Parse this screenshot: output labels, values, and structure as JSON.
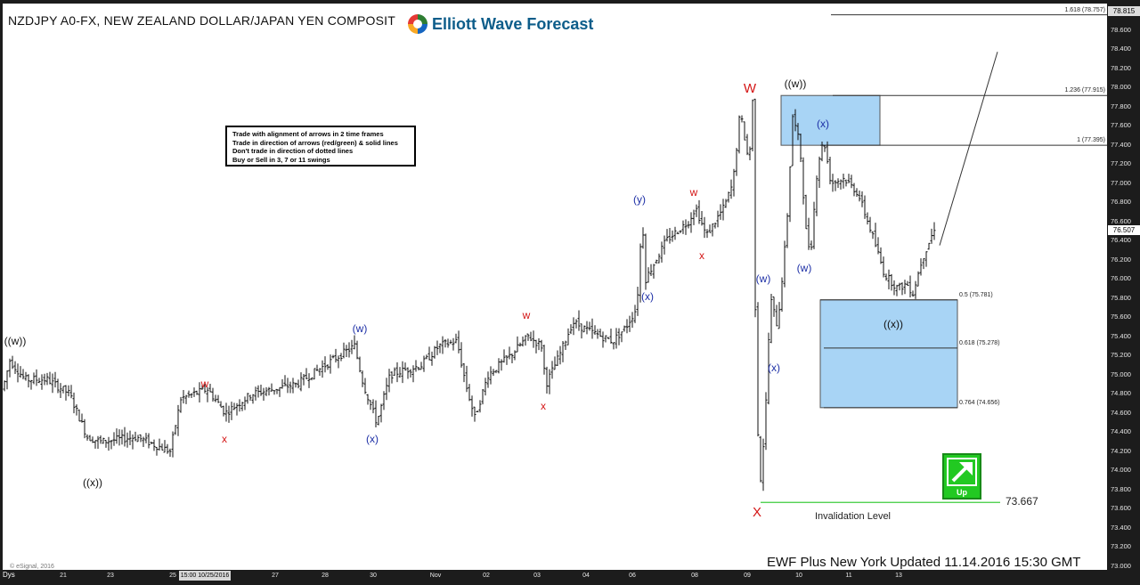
{
  "title": "NZDJPY A0-FX, NEW ZEALAND DOLLAR/JAPAN YEN COMPOSIT",
  "logo_text": "Elliott Wave Forecast",
  "rules": [
    "Trade with alignment of arrows in 2 time frames",
    "Trade in direction of arrows (red/green) & solid lines",
    "Don't trade in direction of dotted lines",
    "Buy or Sell in 3, 7 or 11 swings"
  ],
  "footer": "EWF Plus New York Updated 11.14.2016 15:30 GMT",
  "esignal": "© eSignal, 2016",
  "dys_label": "Dys",
  "cursor_date": "15:00 10/25/2016",
  "last_price": "76.507",
  "top_price": "78.815",
  "up_label": "Up",
  "invalidation": {
    "value": "73.667",
    "label": "Invalidation Level"
  },
  "colors": {
    "blue_box": "#a8d4f5",
    "green_line": "#3ecb3e",
    "wave_red": "#d41515",
    "wave_blue": "#1d2fa6",
    "arrow_green": "#22c922"
  },
  "chart_data": {
    "type": "ohlc",
    "y_axis": {
      "min": 73.0,
      "max": 78.8,
      "ticks": [
        "73.000",
        "73.200",
        "73.400",
        "73.600",
        "73.800",
        "74.000",
        "74.200",
        "74.400",
        "74.600",
        "74.800",
        "75.000",
        "75.200",
        "75.400",
        "75.600",
        "75.800",
        "76.000",
        "76.200",
        "76.400",
        "76.600",
        "76.800",
        "77.000",
        "77.200",
        "77.400",
        "77.600",
        "77.800",
        "78.000",
        "78.200",
        "78.400",
        "78.600"
      ]
    },
    "x_ticks": [
      "21",
      "23",
      "25",
      "27",
      "28",
      "30",
      "Nov",
      "02",
      "03",
      "04",
      "06",
      "08",
      "09",
      "10",
      "11",
      "13"
    ],
    "series_anchors": [
      [
        0,
        74.85
      ],
      [
        8,
        75.15
      ],
      [
        25,
        74.95
      ],
      [
        50,
        74.95
      ],
      [
        75,
        74.8
      ],
      [
        95,
        74.35
      ],
      [
        110,
        74.3
      ],
      [
        150,
        74.35
      ],
      [
        188,
        74.2
      ],
      [
        200,
        74.75
      ],
      [
        230,
        74.85
      ],
      [
        250,
        74.6
      ],
      [
        280,
        74.8
      ],
      [
        330,
        74.9
      ],
      [
        370,
        75.15
      ],
      [
        395,
        75.3
      ],
      [
        405,
        74.9
      ],
      [
        420,
        74.5
      ],
      [
        435,
        75.0
      ],
      [
        470,
        75.1
      ],
      [
        490,
        75.3
      ],
      [
        510,
        75.35
      ],
      [
        520,
        74.9
      ],
      [
        530,
        74.55
      ],
      [
        545,
        75.0
      ],
      [
        570,
        75.2
      ],
      [
        590,
        75.4
      ],
      [
        605,
        75.3
      ],
      [
        610,
        74.9
      ],
      [
        625,
        75.2
      ],
      [
        640,
        75.55
      ],
      [
        660,
        75.45
      ],
      [
        685,
        75.35
      ],
      [
        700,
        75.5
      ],
      [
        712,
        75.7
      ],
      [
        718,
        76.65
      ],
      [
        722,
        76.0
      ],
      [
        745,
        76.4
      ],
      [
        770,
        76.6
      ],
      [
        778,
        76.75
      ],
      [
        790,
        76.45
      ],
      [
        810,
        76.75
      ],
      [
        820,
        77.0
      ],
      [
        828,
        77.75
      ],
      [
        838,
        77.2
      ],
      [
        842,
        77.85
      ],
      [
        846,
        75.0
      ],
      [
        850,
        73.8
      ],
      [
        856,
        74.5
      ],
      [
        862,
        75.8
      ],
      [
        870,
        75.5
      ],
      [
        880,
        76.5
      ],
      [
        887,
        77.7
      ],
      [
        895,
        77.4
      ],
      [
        902,
        76.5
      ],
      [
        907,
        76.25
      ],
      [
        915,
        77.2
      ],
      [
        922,
        77.45
      ],
      [
        930,
        77.0
      ],
      [
        945,
        77.05
      ],
      [
        960,
        76.9
      ],
      [
        975,
        76.5
      ],
      [
        990,
        76.05
      ],
      [
        1005,
        75.9
      ],
      [
        1015,
        75.95
      ],
      [
        1022,
        75.85
      ],
      [
        1032,
        76.2
      ],
      [
        1045,
        76.5
      ],
      [
        1050,
        76.5
      ]
    ]
  },
  "levels": [
    {
      "label": "1.618 (78.757)",
      "value": 78.757
    },
    {
      "label": "1.236 (77.915)",
      "value": 77.915
    },
    {
      "label": "1 (77.395)",
      "value": 77.395
    },
    {
      "label": "0.5 (75.781)",
      "value": 75.781
    },
    {
      "label": "0.618 (75.278)",
      "value": 75.278
    },
    {
      "label": "0.764 (74.656)",
      "value": 74.656
    }
  ],
  "wave_labels": [
    {
      "text": "((w))",
      "color": "black"
    },
    {
      "text": "((x))",
      "color": "black"
    },
    {
      "text": "w",
      "color": "red"
    },
    {
      "text": "x",
      "color": "red"
    },
    {
      "text": "(w)",
      "color": "blue"
    },
    {
      "text": "(x)",
      "color": "blue"
    },
    {
      "text": "w",
      "color": "red"
    },
    {
      "text": "x",
      "color": "red"
    },
    {
      "text": "(y)",
      "color": "blue"
    },
    {
      "text": "(x)",
      "color": "blue"
    },
    {
      "text": "w",
      "color": "red"
    },
    {
      "text": "x",
      "color": "red"
    },
    {
      "text": "W",
      "color": "red"
    },
    {
      "text": "X",
      "color": "red"
    },
    {
      "text": "((w))",
      "color": "black"
    },
    {
      "text": "(w)",
      "color": "blue"
    },
    {
      "text": "(x)",
      "color": "blue"
    },
    {
      "text": "(x)",
      "color": "blue"
    },
    {
      "text": "(w)",
      "color": "blue"
    },
    {
      "text": "((x))",
      "color": "black"
    }
  ]
}
